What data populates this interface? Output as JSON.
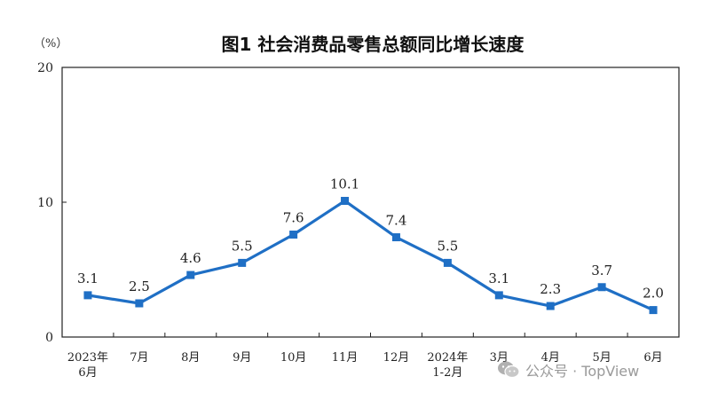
{
  "title": "图1  社会消费品零售总额同比增长速度",
  "unit_label": "（%）",
  "watermark": {
    "text": "公众号 · TopView",
    "icon": "wechat-icon"
  },
  "chart_data": {
    "type": "line",
    "categories": [
      [
        "2023年",
        "6月"
      ],
      [
        "7月"
      ],
      [
        "8月"
      ],
      [
        "9月"
      ],
      [
        "10月"
      ],
      [
        "11月"
      ],
      [
        "12月"
      ],
      [
        "2024年",
        "1-2月"
      ],
      [
        "3月"
      ],
      [
        "4月"
      ],
      [
        "5月"
      ],
      [
        "6月"
      ]
    ],
    "values": [
      3.1,
      2.5,
      4.6,
      5.5,
      7.6,
      10.1,
      7.4,
      5.5,
      3.1,
      2.3,
      3.7,
      2.0
    ],
    "data_labels": [
      "3.1",
      "2.5",
      "4.6",
      "5.5",
      "7.6",
      "10.1",
      "7.4",
      "5.5",
      "3.1",
      "2.3",
      "3.7",
      "2.0"
    ],
    "yticks": [
      0,
      10,
      20
    ],
    "ylim": [
      0,
      20
    ],
    "grid": false,
    "line_color": "#1f6fc5",
    "axis_color": "#222222"
  }
}
